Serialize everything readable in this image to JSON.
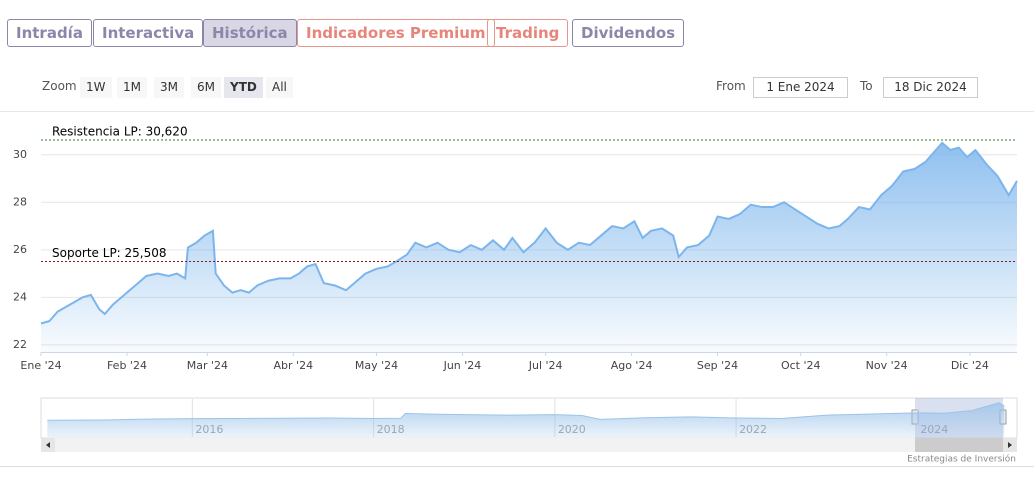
{
  "tabs": [
    "Intradía",
    "Interactiva",
    "Histórica",
    "Indicadores Premium",
    "Trading",
    "Dividendos"
  ],
  "zoom": {
    "label": "Zoom",
    "buttons": [
      "1W",
      "1M",
      "3M",
      "6M",
      "YTD",
      "All"
    ]
  },
  "range": {
    "from_label": "From",
    "from": "1 Ene 2024",
    "to_label": "To",
    "to": "18 Dic 2024"
  },
  "credits": "Estrategias de Inversión",
  "chart_data": [
    {
      "type": "area",
      "color": "#7cb5ec",
      "grid": true,
      "x": [
        0,
        3,
        6,
        9,
        12,
        15,
        18,
        21,
        23,
        26,
        30,
        34,
        38,
        42,
        46,
        49,
        52,
        53,
        56,
        59,
        62,
        63,
        66,
        69,
        72,
        75,
        78,
        82,
        86,
        90,
        93,
        96,
        99,
        102,
        106,
        110,
        113,
        117,
        121,
        125,
        128,
        132,
        135,
        139,
        143,
        147,
        151,
        155,
        159,
        163,
        167,
        170,
        174,
        178,
        182,
        186,
        190,
        194,
        198,
        202,
        206,
        210,
        214,
        217,
        220,
        224,
        228,
        230,
        233,
        237,
        241,
        244,
        248,
        252,
        256,
        260,
        264,
        268,
        272,
        276,
        280,
        284,
        288,
        291,
        295,
        299,
        303,
        307,
        311,
        315,
        319,
        322,
        325,
        328,
        331,
        334,
        337,
        341,
        345,
        349,
        352
      ],
      "values": [
        22.9,
        23.0,
        23.4,
        23.6,
        23.8,
        24.0,
        24.1,
        23.5,
        23.3,
        23.7,
        24.1,
        24.5,
        24.9,
        25.0,
        24.9,
        25.0,
        24.8,
        26.1,
        26.3,
        26.6,
        26.8,
        25.0,
        24.5,
        24.2,
        24.3,
        24.2,
        24.5,
        24.7,
        24.8,
        24.8,
        25.0,
        25.3,
        25.4,
        24.6,
        24.5,
        24.3,
        24.6,
        25.0,
        25.2,
        25.3,
        25.5,
        25.8,
        26.3,
        26.1,
        26.3,
        26.0,
        25.9,
        26.2,
        26.0,
        26.4,
        26.0,
        26.5,
        25.9,
        26.3,
        26.9,
        26.3,
        26.0,
        26.3,
        26.2,
        26.6,
        27.0,
        26.9,
        27.2,
        26.5,
        26.8,
        26.9,
        26.6,
        25.7,
        26.1,
        26.2,
        26.6,
        27.4,
        27.3,
        27.5,
        27.9,
        27.8,
        27.8,
        28.0,
        27.7,
        27.4,
        27.1,
        26.9,
        27.0,
        27.3,
        27.8,
        27.7,
        28.3,
        28.7,
        29.3,
        29.4,
        29.7,
        30.1,
        30.5,
        30.2,
        30.3,
        29.9,
        30.2,
        29.6,
        29.1,
        28.3,
        28.9
      ],
      "xlim": [
        0,
        352
      ],
      "ylim": [
        21.7,
        31.8
      ],
      "xticks": [
        {
          "value": 0,
          "label": "Ene '24"
        },
        {
          "value": 31,
          "label": "Feb '24"
        },
        {
          "value": 60,
          "label": "Mar '24"
        },
        {
          "value": 91,
          "label": "Abr '24"
        },
        {
          "value": 121,
          "label": "May '24"
        },
        {
          "value": 152,
          "label": "Jun '24"
        },
        {
          "value": 182,
          "label": "Jul '24"
        },
        {
          "value": 213,
          "label": "Ago '24"
        },
        {
          "value": 244,
          "label": "Sep '24"
        },
        {
          "value": 274,
          "label": "Oct '24"
        },
        {
          "value": 305,
          "label": "Nov '24"
        },
        {
          "value": 335,
          "label": "Dic '24"
        }
      ],
      "yticks": [
        22,
        24,
        26,
        28,
        30
      ],
      "lines": [
        {
          "value": 30.62,
          "label": "Resistencia LP: 30,620",
          "color": "#2e7d32"
        },
        {
          "value": 25.508,
          "label": "Soporte LP: 25,508",
          "color": "#8b1a1a"
        }
      ]
    },
    {
      "type": "area",
      "color": "#9cc3ea",
      "x": [
        2014.4,
        2015,
        2015.5,
        2016,
        2016.5,
        2017,
        2017.5,
        2018,
        2018.3,
        2018.35,
        2018.7,
        2019,
        2019.5,
        2020,
        2020.3,
        2020.5,
        2021,
        2021.5,
        2022,
        2022.5,
        2023,
        2023.5,
        2024,
        2024.3,
        2024.6,
        2024.9,
        2024.96
      ],
      "values": [
        22.5,
        22.6,
        23.0,
        23.2,
        23.3,
        23.4,
        23.5,
        23.3,
        23.4,
        25.5,
        25.2,
        25.0,
        24.8,
        25.0,
        24.6,
        22.9,
        23.6,
        24.0,
        23.5,
        23.3,
        24.8,
        25.3,
        25.8,
        25.6,
        26.8,
        30.3,
        28.9
      ],
      "xlim": [
        2014.33,
        2025.1
      ],
      "ylim": [
        15,
        32
      ],
      "xticks": [
        2016,
        2018,
        2020,
        2022,
        2024
      ]
    }
  ]
}
